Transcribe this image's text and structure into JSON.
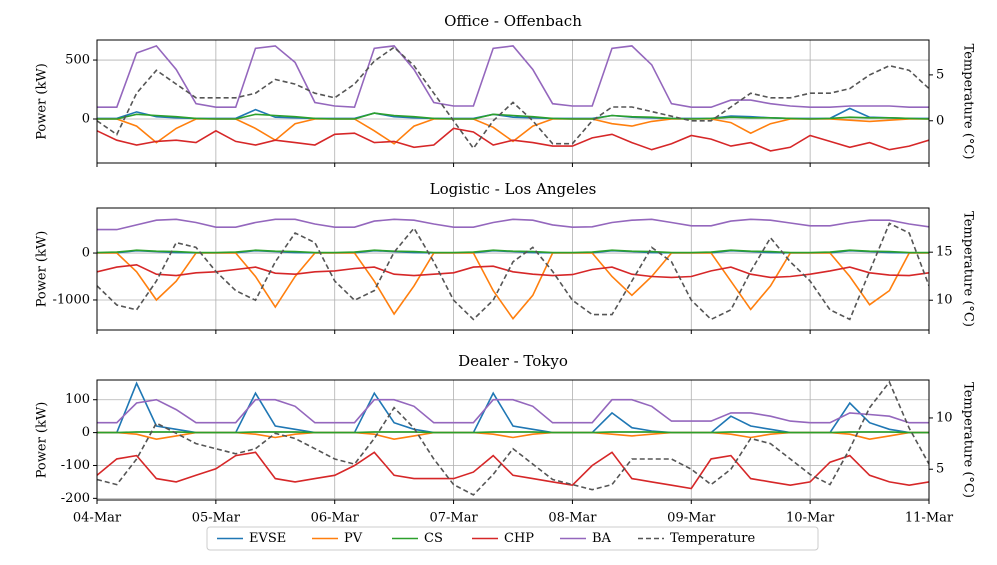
{
  "chart_data": [
    {
      "type": "line",
      "title": "Office - Offenbach",
      "ylabel": "Power (kW)",
      "y2label": "Temperature (°C)",
      "x": [
        0,
        4,
        8,
        12,
        16,
        20,
        24,
        28,
        32,
        36,
        40,
        44,
        48,
        52,
        56,
        60,
        64,
        68,
        72,
        76,
        80,
        84,
        88,
        92,
        96,
        100,
        104,
        108,
        112,
        116,
        120,
        124,
        128,
        132,
        136,
        140,
        144,
        148,
        152,
        156,
        160,
        164,
        168
      ],
      "xlim": [
        0,
        168
      ],
      "xticks": [
        0,
        24,
        48,
        72,
        96,
        120,
        144,
        168
      ],
      "ylim": [
        -373,
        670
      ],
      "yticks": [
        0,
        500
      ],
      "y2lim": [
        -4.6,
        8.8
      ],
      "y2ticks": [
        0,
        5
      ],
      "grid": true,
      "series": [
        {
          "name": "EVSE",
          "color": "#1f77b4",
          "values": [
            5,
            5,
            60,
            20,
            10,
            5,
            5,
            5,
            80,
            15,
            10,
            5,
            5,
            5,
            50,
            20,
            10,
            5,
            5,
            5,
            40,
            15,
            10,
            5,
            5,
            5,
            30,
            15,
            10,
            5,
            5,
            5,
            25,
            20,
            10,
            5,
            5,
            5,
            90,
            15,
            10,
            5,
            5
          ]
        },
        {
          "name": "PV",
          "color": "#ff7f0e",
          "values": [
            0,
            0,
            -60,
            -200,
            -80,
            0,
            0,
            0,
            -80,
            -180,
            -40,
            0,
            0,
            0,
            -100,
            -210,
            -60,
            0,
            0,
            0,
            -70,
            -190,
            -60,
            0,
            0,
            0,
            -40,
            -60,
            -20,
            0,
            0,
            0,
            -30,
            -120,
            -40,
            0,
            0,
            0,
            -10,
            -20,
            -10,
            0,
            0
          ]
        },
        {
          "name": "CS",
          "color": "#2ca02c",
          "values": [
            0,
            0,
            40,
            30,
            20,
            5,
            0,
            0,
            40,
            30,
            20,
            5,
            0,
            0,
            50,
            30,
            20,
            5,
            0,
            0,
            40,
            30,
            20,
            5,
            0,
            0,
            30,
            20,
            15,
            5,
            0,
            5,
            15,
            10,
            10,
            5,
            0,
            5,
            15,
            10,
            10,
            5,
            0
          ]
        },
        {
          "name": "CHP",
          "color": "#d62728",
          "values": [
            -100,
            -180,
            -220,
            -190,
            -180,
            -200,
            -100,
            -190,
            -220,
            -180,
            -200,
            -220,
            -130,
            -120,
            -200,
            -190,
            -240,
            -220,
            -80,
            -110,
            -220,
            -180,
            -200,
            -230,
            -230,
            -160,
            -130,
            -200,
            -260,
            -210,
            -140,
            -170,
            -230,
            -200,
            -270,
            -240,
            -140,
            -190,
            -240,
            -200,
            -260,
            -230,
            -180
          ]
        },
        {
          "name": "BA",
          "color": "#9467bd",
          "values": [
            100,
            100,
            560,
            620,
            420,
            130,
            100,
            100,
            600,
            620,
            480,
            140,
            110,
            100,
            600,
            620,
            420,
            140,
            110,
            110,
            600,
            620,
            420,
            130,
            110,
            110,
            600,
            620,
            460,
            130,
            100,
            100,
            160,
            160,
            130,
            110,
            100,
            100,
            110,
            110,
            110,
            100,
            100
          ]
        },
        {
          "name": "Temperature",
          "color": "#555555",
          "linestyle": "dashed",
          "axis": "y2",
          "values": [
            0,
            -1.5,
            3,
            5.5,
            4,
            2.5,
            2.5,
            2.5,
            3,
            4.5,
            4,
            3,
            2.5,
            4,
            6.5,
            8,
            6,
            3,
            0,
            -3,
            0,
            2,
            0,
            -2.5,
            -2.5,
            0,
            1.5,
            1.5,
            1,
            0.5,
            0,
            0,
            1.5,
            3,
            2.5,
            2.5,
            3,
            3,
            3.5,
            5,
            6,
            5.5,
            3.5
          ]
        }
      ]
    },
    {
      "type": "line",
      "title": "Logistic - Los Angeles",
      "ylabel": "Power (kW)",
      "y2label": "Temperature (°C)",
      "x": [
        0,
        4,
        8,
        12,
        16,
        20,
        24,
        28,
        32,
        36,
        40,
        44,
        48,
        52,
        56,
        60,
        64,
        68,
        72,
        76,
        80,
        84,
        88,
        92,
        96,
        100,
        104,
        108,
        112,
        116,
        120,
        124,
        128,
        132,
        136,
        140,
        144,
        148,
        152,
        156,
        160,
        164,
        168
      ],
      "xlim": [
        0,
        168
      ],
      "xticks": [
        0,
        24,
        48,
        72,
        96,
        120,
        144,
        168
      ],
      "ylim": [
        -1640,
        960
      ],
      "yticks": [
        -1000,
        0
      ],
      "y2lim": [
        6.9,
        19.6
      ],
      "y2ticks": [
        10,
        15
      ],
      "grid": true,
      "series": [
        {
          "color": "#1f77b4",
          "values": [
            5,
            5,
            50,
            30,
            10,
            5,
            5,
            5,
            50,
            30,
            10,
            5,
            5,
            5,
            50,
            30,
            10,
            5,
            5,
            5,
            50,
            30,
            10,
            5,
            5,
            5,
            50,
            30,
            10,
            5,
            5,
            5,
            50,
            30,
            10,
            5,
            5,
            5,
            50,
            30,
            10,
            5,
            5
          ]
        },
        {
          "color": "#ff7f0e",
          "values": [
            0,
            0,
            -400,
            -1000,
            -600,
            0,
            0,
            0,
            -500,
            -1150,
            -500,
            0,
            0,
            0,
            -600,
            -1300,
            -700,
            0,
            0,
            0,
            -800,
            -1400,
            -900,
            0,
            0,
            0,
            -500,
            -900,
            -500,
            0,
            0,
            0,
            -600,
            -1200,
            -700,
            0,
            0,
            0,
            -500,
            -1100,
            -800,
            0,
            0
          ]
        },
        {
          "color": "#2ca02c",
          "values": [
            10,
            20,
            60,
            40,
            30,
            10,
            10,
            20,
            60,
            40,
            30,
            10,
            10,
            20,
            60,
            40,
            30,
            10,
            10,
            20,
            60,
            40,
            30,
            10,
            10,
            20,
            60,
            40,
            30,
            10,
            10,
            20,
            60,
            40,
            30,
            10,
            10,
            20,
            60,
            40,
            30,
            10,
            10
          ]
        },
        {
          "color": "#d62728",
          "values": [
            -400,
            -300,
            -250,
            -450,
            -480,
            -420,
            -400,
            -350,
            -300,
            -430,
            -450,
            -400,
            -380,
            -330,
            -300,
            -450,
            -480,
            -450,
            -420,
            -300,
            -280,
            -400,
            -450,
            -480,
            -460,
            -350,
            -300,
            -450,
            -500,
            -520,
            -500,
            -380,
            -300,
            -450,
            -520,
            -500,
            -450,
            -380,
            -300,
            -420,
            -470,
            -480,
            -420
          ]
        },
        {
          "color": "#9467bd",
          "values": [
            500,
            500,
            600,
            700,
            720,
            650,
            550,
            550,
            650,
            720,
            720,
            620,
            550,
            550,
            680,
            720,
            700,
            620,
            550,
            550,
            650,
            720,
            700,
            600,
            550,
            560,
            650,
            700,
            720,
            650,
            580,
            580,
            680,
            720,
            700,
            640,
            580,
            580,
            650,
            700,
            700,
            620,
            560
          ]
        },
        {
          "color": "#555555",
          "linestyle": "dashed",
          "axis": "y2",
          "values": [
            11.5,
            9.5,
            9,
            12,
            16,
            15.5,
            13,
            11,
            10,
            14,
            17,
            16,
            12,
            10,
            11,
            15,
            17.5,
            14,
            10,
            8,
            10,
            14,
            15.5,
            13,
            10,
            8.5,
            8.5,
            12,
            15.5,
            14,
            10,
            8,
            9,
            13,
            16.5,
            14,
            12,
            9,
            8,
            13,
            18,
            17,
            11.5
          ]
        }
      ]
    },
    {
      "type": "line",
      "title": "Dealer - Tokyo",
      "ylabel": "Power (kW)",
      "y2label": "Temperature (°C)",
      "x": [
        0,
        4,
        8,
        12,
        16,
        20,
        24,
        28,
        32,
        36,
        40,
        44,
        48,
        52,
        56,
        60,
        64,
        68,
        72,
        76,
        80,
        84,
        88,
        92,
        96,
        100,
        104,
        108,
        112,
        116,
        120,
        124,
        128,
        132,
        136,
        140,
        144,
        148,
        152,
        156,
        160,
        164,
        168
      ],
      "xlim": [
        0,
        168
      ],
      "xticks": [
        {
          "value": 0,
          "label": "04-Mar"
        },
        {
          "value": 24,
          "label": "05-Mar"
        },
        {
          "value": 48,
          "label": "06-Mar"
        },
        {
          "value": 72,
          "label": "07-Mar"
        },
        {
          "value": 96,
          "label": "08-Mar"
        },
        {
          "value": 120,
          "label": "09-Mar"
        },
        {
          "value": 144,
          "label": "10-Mar"
        },
        {
          "value": 168,
          "label": "11-Mar"
        }
      ],
      "ylim": [
        -205,
        160
      ],
      "yticks": [
        -200,
        -100,
        0,
        100
      ],
      "y2lim": [
        2.0,
        13.7
      ],
      "y2ticks": [
        5,
        10
      ],
      "grid": true,
      "series": [
        {
          "color": "#1f77b4",
          "values": [
            0,
            0,
            150,
            20,
            10,
            0,
            0,
            0,
            120,
            20,
            10,
            0,
            0,
            0,
            120,
            30,
            10,
            0,
            0,
            0,
            120,
            20,
            10,
            0,
            0,
            0,
            60,
            15,
            5,
            0,
            0,
            0,
            50,
            20,
            10,
            0,
            0,
            0,
            90,
            30,
            10,
            0,
            0
          ]
        },
        {
          "color": "#ff7f0e",
          "values": [
            0,
            0,
            -5,
            -20,
            -10,
            0,
            0,
            0,
            -5,
            -15,
            -5,
            0,
            0,
            0,
            -5,
            -20,
            -10,
            0,
            0,
            0,
            -5,
            -15,
            -5,
            0,
            0,
            0,
            -5,
            -10,
            -5,
            0,
            0,
            0,
            -5,
            -15,
            -5,
            0,
            0,
            0,
            -5,
            -20,
            -10,
            0,
            0
          ]
        },
        {
          "color": "#2ca02c",
          "values": [
            0,
            0,
            2,
            2,
            2,
            0,
            0,
            0,
            2,
            2,
            2,
            0,
            0,
            0,
            2,
            2,
            2,
            0,
            0,
            0,
            2,
            2,
            2,
            0,
            0,
            0,
            2,
            2,
            2,
            0,
            0,
            0,
            2,
            2,
            2,
            0,
            0,
            0,
            2,
            2,
            2,
            0,
            0
          ]
        },
        {
          "color": "#d62728",
          "values": [
            -130,
            -80,
            -70,
            -140,
            -150,
            -130,
            -110,
            -70,
            -60,
            -140,
            -150,
            -140,
            -130,
            -100,
            -60,
            -130,
            -140,
            -140,
            -140,
            -120,
            -70,
            -130,
            -140,
            -150,
            -160,
            -100,
            -60,
            -140,
            -150,
            -160,
            -170,
            -80,
            -70,
            -140,
            -150,
            -160,
            -150,
            -90,
            -70,
            -130,
            -150,
            -160,
            -150
          ]
        },
        {
          "color": "#9467bd",
          "values": [
            30,
            30,
            90,
            100,
            70,
            30,
            30,
            30,
            100,
            100,
            80,
            30,
            30,
            30,
            100,
            100,
            80,
            30,
            30,
            30,
            100,
            100,
            80,
            30,
            30,
            30,
            100,
            100,
            80,
            35,
            35,
            35,
            60,
            60,
            50,
            35,
            30,
            30,
            60,
            55,
            50,
            30,
            30
          ]
        },
        {
          "color": "#555555",
          "linestyle": "dashed",
          "axis": "y2",
          "values": [
            4,
            3.5,
            6,
            9.5,
            8.5,
            7.5,
            7,
            6.5,
            7,
            8.5,
            8,
            7,
            6,
            5.5,
            8,
            11,
            9,
            6,
            3.5,
            2.5,
            4.5,
            7,
            5.5,
            4,
            3.5,
            3,
            3.5,
            6,
            6,
            6,
            5,
            3.5,
            5,
            8,
            7.5,
            6,
            4.5,
            3.5,
            7,
            11,
            13.5,
            9,
            5.5
          ]
        }
      ]
    }
  ]
}
